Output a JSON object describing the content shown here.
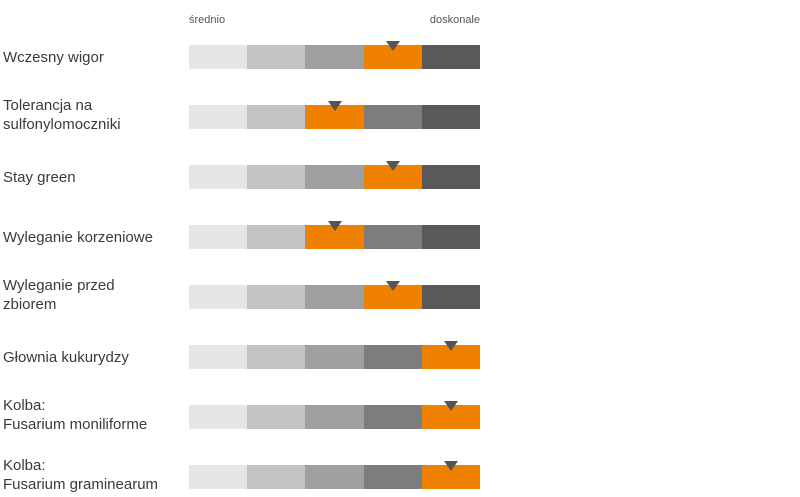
{
  "chart_data": {
    "type": "rating-scale",
    "scale_labels": {
      "min": "średnio",
      "max": "doskonale"
    },
    "levels": 5,
    "colors": {
      "segments": [
        "#e6e6e6",
        "#c3c3c3",
        "#a0a0a0",
        "#7d7d7d",
        "#595959"
      ],
      "highlight": "#f08000",
      "marker": "#555555"
    },
    "traits": [
      {
        "label": "Wczesny wigor",
        "level": 4,
        "marker": 3.5
      },
      {
        "label": "Tolerancja na\nsulfonylomoczniki",
        "level": 3,
        "marker": 2.5
      },
      {
        "label": "Stay green",
        "level": 4,
        "marker": 3.5
      },
      {
        "label": "Wyleganie korzeniowe",
        "level": 3,
        "marker": 2.5
      },
      {
        "label": "Wyleganie przed\nzbiorem",
        "level": 4,
        "marker": 3.5
      },
      {
        "label": "Głownia kukurydzy",
        "level": 5,
        "marker": 4.5
      },
      {
        "label": "Kolba:\nFusarium moniliforme",
        "level": 5,
        "marker": 4.5
      },
      {
        "label": "Kolba:\nFusarium graminearum",
        "level": 5,
        "marker": 4.5
      }
    ]
  }
}
